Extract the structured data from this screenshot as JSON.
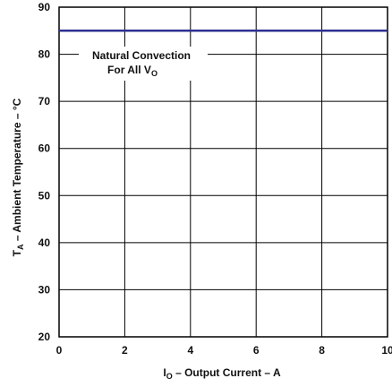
{
  "chart_data": {
    "type": "line",
    "x": [
      0,
      10
    ],
    "series": [
      {
        "values": [
          85,
          85
        ],
        "color": "#2e3192"
      }
    ],
    "xlim": [
      0,
      10
    ],
    "ylim": [
      20,
      90
    ],
    "xticks": [
      0,
      2,
      4,
      6,
      8,
      10
    ],
    "yticks": [
      20,
      30,
      40,
      50,
      60,
      70,
      80,
      90
    ],
    "grid": true,
    "title": "",
    "annotation": {
      "line1": "Natural Convection",
      "line2_prefix": "For All V",
      "line2_sub": "O"
    },
    "xlabel": {
      "prefix": "I",
      "sub": "O",
      "rest": " – Output Current – A"
    },
    "ylabel": {
      "prefix": "T",
      "sub": "A",
      "rest": " – Ambient Temperature – °C"
    }
  }
}
